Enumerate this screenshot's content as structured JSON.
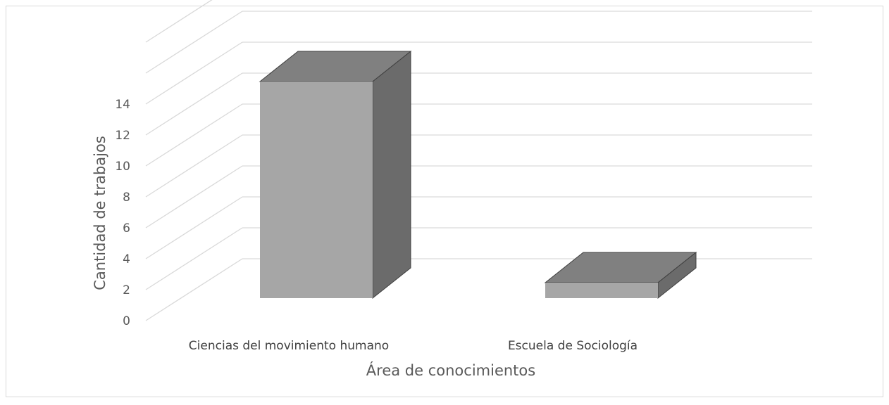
{
  "chart_data": {
    "type": "bar",
    "style": "3d-column",
    "categories": [
      "Ciencias del movimiento humano",
      "Escuela de Sociología"
    ],
    "values": [
      14,
      1
    ],
    "xlabel": "Área de conocimientos",
    "ylabel": "Cantidad de trabajos",
    "ylim": [
      0,
      14
    ],
    "ytick_step": 2,
    "grid": true,
    "legend": "none",
    "colors": {
      "front": "#a6a6a6",
      "top": "#808080",
      "side": "#6b6b6b",
      "grid": "#d9d9d9",
      "text": "#595959"
    }
  }
}
